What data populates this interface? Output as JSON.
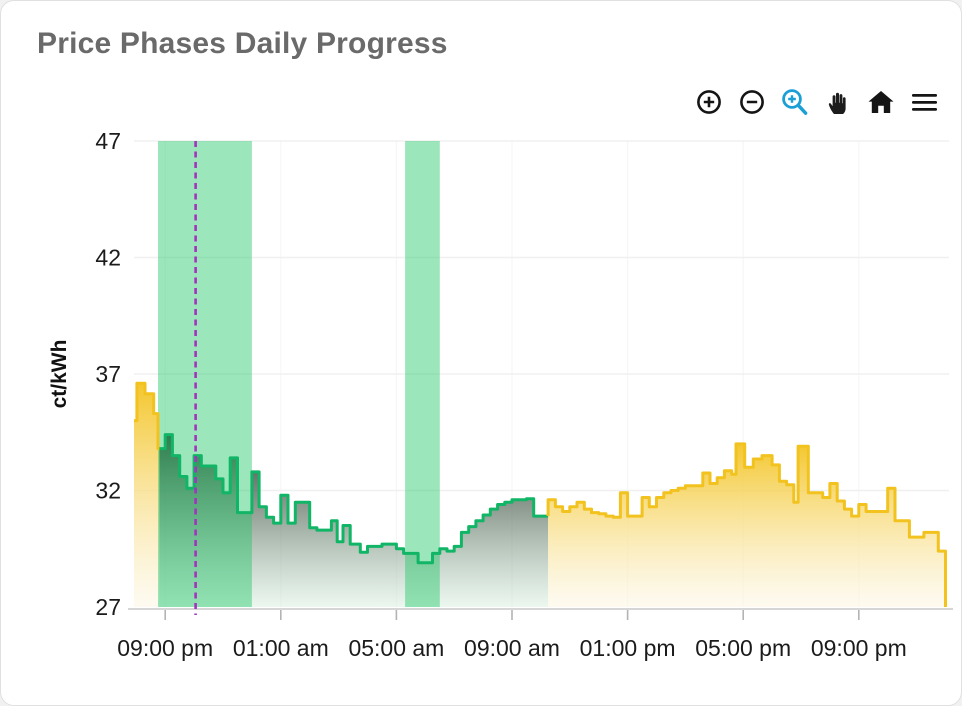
{
  "card": {
    "title": "Price Phases Daily Progress"
  },
  "toolbar": {
    "icons": [
      {
        "name": "zoom-in"
      },
      {
        "name": "zoom-out"
      },
      {
        "name": "box-zoom",
        "active": true,
        "color": "#1A9FD6"
      },
      {
        "name": "pan"
      },
      {
        "name": "reset-view"
      },
      {
        "name": "menu"
      }
    ]
  },
  "chart_data": {
    "type": "area",
    "title": "Price Phases Daily Progress",
    "xlabel": "",
    "ylabel": "ct/kWh",
    "ylim": [
      27,
      47
    ],
    "x_range": [
      19.92,
      48.12
    ],
    "grid": true,
    "legend": "none",
    "yticks": [
      {
        "value": 27,
        "label": "27"
      },
      {
        "value": 32,
        "label": "32"
      },
      {
        "value": 37,
        "label": "37"
      },
      {
        "value": 42,
        "label": "42"
      },
      {
        "value": 47,
        "label": "47"
      }
    ],
    "xticks": [
      {
        "hour": 21,
        "label": "09:00 pm"
      },
      {
        "hour": 25,
        "label": "01:00 am"
      },
      {
        "hour": 29,
        "label": "05:00 am"
      },
      {
        "hour": 33,
        "label": "09:00 am"
      },
      {
        "hour": 37,
        "label": "01:00 pm"
      },
      {
        "hour": 41,
        "label": "05:00 pm"
      },
      {
        "hour": 45,
        "label": "09:00 pm"
      }
    ],
    "bands": [
      {
        "name": "cheap-price-window",
        "start_hour": 20.75,
        "end_hour": 24.0
      },
      {
        "name": "cheap-price-window",
        "start_hour": 29.3,
        "end_hour": 30.5
      }
    ],
    "now_marker": {
      "hour": 22.05,
      "style": "dashed",
      "color": "#A333BF"
    },
    "colors": {
      "yellow_line": "#F2C21F",
      "green_line": "#10B566",
      "band": "rgba(35,200,105,0.45)",
      "now_line": "#A333BF",
      "yellow_fill_stops": [
        [
          "0%",
          "rgba(243,196,35,0.95)"
        ],
        [
          "45%",
          "rgba(248,221,130,0.8)"
        ],
        [
          "100%",
          "rgba(252,246,226,0.5)"
        ]
      ],
      "green_fill_stops": [
        [
          "0%",
          "rgba(48,52,48,0.95)"
        ],
        [
          "45%",
          "rgba(95,115,100,0.68)"
        ],
        [
          "100%",
          "rgba(216,240,223,0.5)"
        ]
      ]
    },
    "series": [
      {
        "name": "price-expensive-evening",
        "phase": "expensive",
        "color": "#F2C21F",
        "end_hour": 20.8,
        "points": [
          [
            19.92,
            35.0
          ],
          [
            20.02,
            36.6
          ],
          [
            20.3,
            36.15
          ],
          [
            20.6,
            35.3
          ],
          [
            20.75,
            33.8
          ]
        ]
      },
      {
        "name": "price-cheap-night",
        "phase": "cheap",
        "color": "#10B566",
        "lead_in": 33.8,
        "end_hour": 34.25,
        "points": [
          [
            20.8,
            33.8
          ],
          [
            21.0,
            34.4
          ],
          [
            21.25,
            33.5
          ],
          [
            21.5,
            32.6
          ],
          [
            21.75,
            32.1
          ],
          [
            22.0,
            33.5
          ],
          [
            22.25,
            33.05
          ],
          [
            22.75,
            32.5
          ],
          [
            23.0,
            31.9
          ],
          [
            23.25,
            33.4
          ],
          [
            23.5,
            31.05
          ],
          [
            24.0,
            32.8
          ],
          [
            24.25,
            31.3
          ],
          [
            24.5,
            30.85
          ],
          [
            24.75,
            30.6
          ],
          [
            25.0,
            31.8
          ],
          [
            25.25,
            30.6
          ],
          [
            25.5,
            31.5
          ],
          [
            26.0,
            30.4
          ],
          [
            26.25,
            30.3
          ],
          [
            26.75,
            30.7
          ],
          [
            26.95,
            29.8
          ],
          [
            27.15,
            30.5
          ],
          [
            27.4,
            29.7
          ],
          [
            27.75,
            29.35
          ],
          [
            28.0,
            29.6
          ],
          [
            28.5,
            29.7
          ],
          [
            29.0,
            29.5
          ],
          [
            29.25,
            29.3
          ],
          [
            29.75,
            28.9
          ],
          [
            30.25,
            29.3
          ],
          [
            30.5,
            29.5
          ],
          [
            30.75,
            29.4
          ],
          [
            31.0,
            29.6
          ],
          [
            31.25,
            30.2
          ],
          [
            31.5,
            30.45
          ],
          [
            31.75,
            30.7
          ],
          [
            32.0,
            30.95
          ],
          [
            32.25,
            31.2
          ],
          [
            32.5,
            31.4
          ],
          [
            32.75,
            31.5
          ],
          [
            33.0,
            31.6
          ],
          [
            33.5,
            31.65
          ],
          [
            33.75,
            30.9
          ]
        ]
      },
      {
        "name": "price-expensive-day",
        "phase": "expensive",
        "color": "#F2C21F",
        "lead_in": 30.9,
        "end_hour": 48.0,
        "close_drop": true,
        "points": [
          [
            34.25,
            31.6
          ],
          [
            34.5,
            31.3
          ],
          [
            34.75,
            31.1
          ],
          [
            35.0,
            31.3
          ],
          [
            35.25,
            31.5
          ],
          [
            35.5,
            31.2
          ],
          [
            35.75,
            31.05
          ],
          [
            36.0,
            31.0
          ],
          [
            36.25,
            30.9
          ],
          [
            36.5,
            30.85
          ],
          [
            36.75,
            31.9
          ],
          [
            37.0,
            30.9
          ],
          [
            37.5,
            31.7
          ],
          [
            37.75,
            31.3
          ],
          [
            38.0,
            31.7
          ],
          [
            38.25,
            31.9
          ],
          [
            38.5,
            32.0
          ],
          [
            38.75,
            32.1
          ],
          [
            39.0,
            32.2
          ],
          [
            39.6,
            32.75
          ],
          [
            39.85,
            32.3
          ],
          [
            40.1,
            32.55
          ],
          [
            40.35,
            32.85
          ],
          [
            40.6,
            32.7
          ],
          [
            40.75,
            34.0
          ],
          [
            41.05,
            33.0
          ],
          [
            41.35,
            33.35
          ],
          [
            41.65,
            33.5
          ],
          [
            42.0,
            33.1
          ],
          [
            42.25,
            32.4
          ],
          [
            42.5,
            32.25
          ],
          [
            42.75,
            31.5
          ],
          [
            42.9,
            33.9
          ],
          [
            43.25,
            31.9
          ],
          [
            43.75,
            31.7
          ],
          [
            44.0,
            32.3
          ],
          [
            44.25,
            31.55
          ],
          [
            44.5,
            31.2
          ],
          [
            44.75,
            30.9
          ],
          [
            45.0,
            31.4
          ],
          [
            45.25,
            31.1
          ],
          [
            46.0,
            32.1
          ],
          [
            46.25,
            30.7
          ],
          [
            46.75,
            30.0
          ],
          [
            47.25,
            30.2
          ],
          [
            47.75,
            29.4
          ]
        ]
      }
    ]
  }
}
